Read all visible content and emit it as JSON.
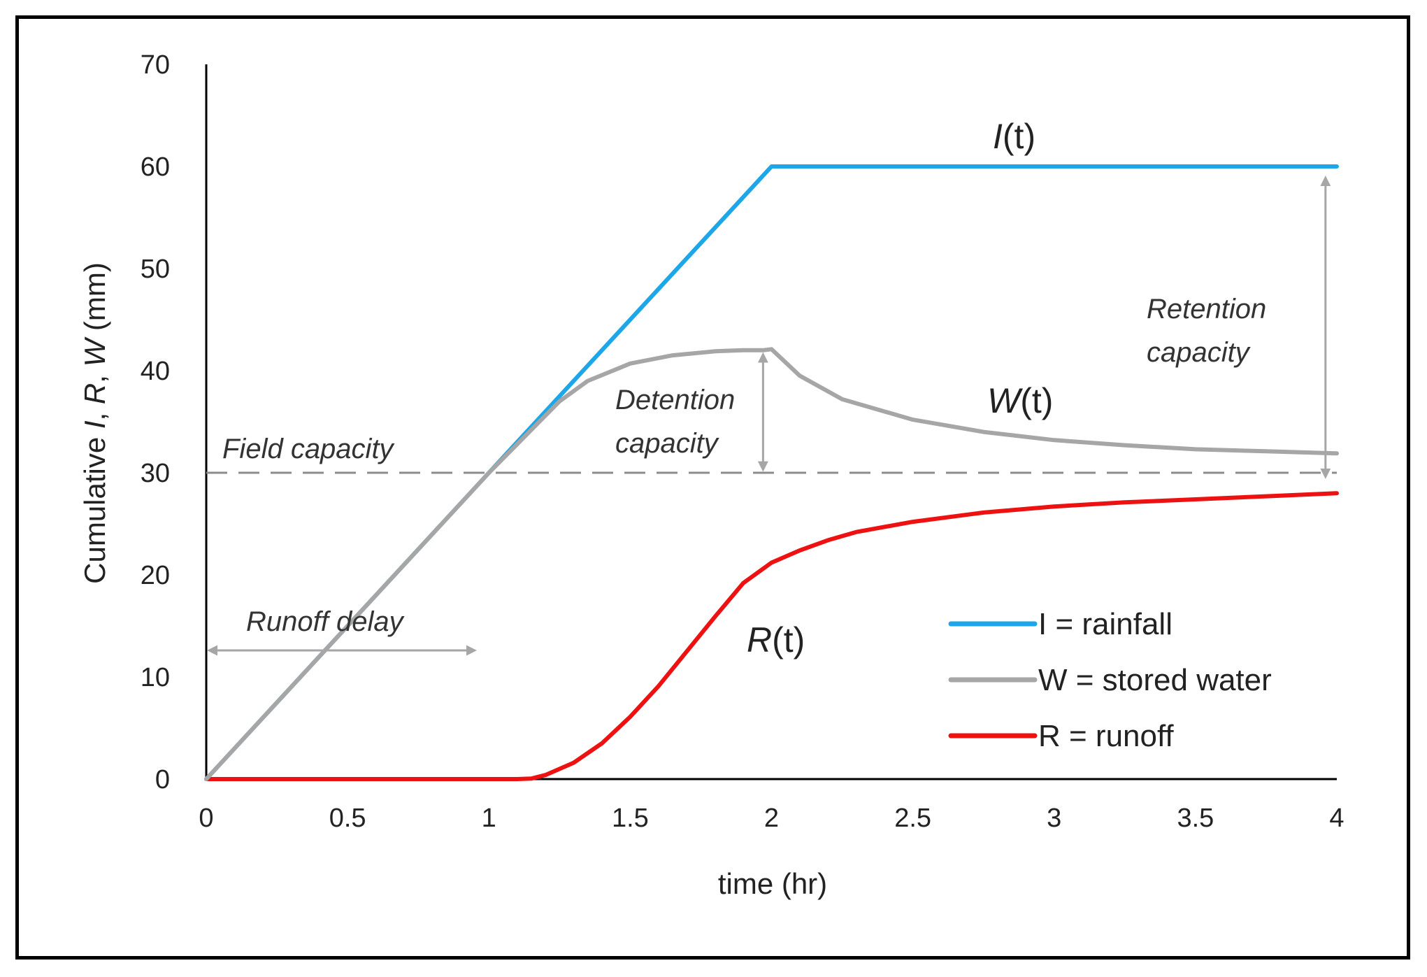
{
  "chart_data": {
    "type": "line",
    "title": "",
    "xlabel": "time (hr)",
    "ylabel": "Cumulative I, R, W (mm)",
    "ylabel_parts": [
      "Cumulative ",
      "I",
      ", ",
      "R",
      ", ",
      "W",
      " (mm)"
    ],
    "xlim": [
      0,
      4
    ],
    "ylim": [
      0,
      70
    ],
    "xticks": [
      0,
      0.5,
      1,
      1.5,
      2,
      2.5,
      3,
      3.5,
      4
    ],
    "xtick_labels": [
      "0",
      "0.5",
      "1",
      "1.5",
      "2",
      "2.5",
      "3",
      "3.5",
      "4"
    ],
    "yticks": [
      0,
      10,
      20,
      30,
      40,
      50,
      60,
      70
    ],
    "ytick_labels": [
      "0",
      "10",
      "20",
      "30",
      "40",
      "50",
      "60",
      "70"
    ],
    "grid": false,
    "legend_position": "bottom-right",
    "series": [
      {
        "name": "I = rainfall",
        "color": "#1ea7e8",
        "x": [
          0,
          2,
          4
        ],
        "y": [
          0,
          60,
          60
        ]
      },
      {
        "name": "W = stored water",
        "color": "#a6a6a6",
        "x": [
          0,
          1.0,
          1.15,
          1.25,
          1.35,
          1.5,
          1.65,
          1.8,
          1.9,
          1.97,
          2.0,
          2.1,
          2.25,
          2.5,
          2.75,
          3.0,
          3.25,
          3.5,
          3.75,
          4.0
        ],
        "y": [
          0,
          30,
          34.2,
          37,
          39,
          40.7,
          41.5,
          41.9,
          42,
          42,
          42.1,
          39.5,
          37.2,
          35.2,
          34,
          33.2,
          32.7,
          32.3,
          32.1,
          31.9
        ]
      },
      {
        "name": "R = runoff",
        "color": "#ee1111",
        "x": [
          0,
          1.1,
          1.15,
          1.2,
          1.3,
          1.4,
          1.5,
          1.6,
          1.7,
          1.8,
          1.9,
          2.0,
          2.1,
          2.2,
          2.3,
          2.5,
          2.75,
          3.0,
          3.25,
          3.5,
          3.75,
          4.0
        ],
        "y": [
          0,
          0,
          0.05,
          0.4,
          1.6,
          3.5,
          6.1,
          9.1,
          12.5,
          15.9,
          19.2,
          21.2,
          22.4,
          23.4,
          24.2,
          25.2,
          26.1,
          26.7,
          27.1,
          27.4,
          27.7,
          28.0
        ]
      }
    ],
    "reference_lines": [
      {
        "label": "Field capacity",
        "y": 30,
        "style": "dashed",
        "color": "#8c8c8c"
      }
    ],
    "curve_labels": [
      {
        "series": "I",
        "text": "I",
        "suffix": "(t)"
      },
      {
        "series": "W",
        "text": "W",
        "suffix": "(t)"
      },
      {
        "series": "R",
        "text": "R",
        "suffix": "(t)"
      }
    ],
    "annotations": {
      "runoff_delay": "Runoff delay",
      "detention": [
        "Detention",
        "capacity"
      ],
      "retention": [
        "Retention",
        "capacity"
      ],
      "field_capacity": "Field capacity"
    },
    "annotation_color": "#a6a6a6",
    "axis_color": "#000000"
  }
}
